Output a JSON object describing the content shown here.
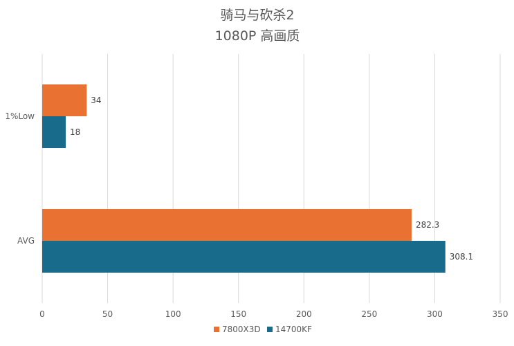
{
  "chart_data": {
    "type": "bar",
    "orientation": "horizontal",
    "title": "骑马与砍杀2",
    "subtitle": "1080P 高画质",
    "categories": [
      "1%Low",
      "AVG"
    ],
    "series": [
      {
        "name": "7800X3D",
        "values": [
          34,
          282.3
        ],
        "color": "#E97132"
      },
      {
        "name": "14700KF",
        "values": [
          18,
          308.1
        ],
        "color": "#196B8C"
      }
    ],
    "xlim": [
      0,
      350
    ],
    "x_ticks": [
      0,
      50,
      100,
      150,
      200,
      250,
      300,
      350
    ],
    "grid": true,
    "legend_position": "bottom",
    "data_labels": true
  }
}
